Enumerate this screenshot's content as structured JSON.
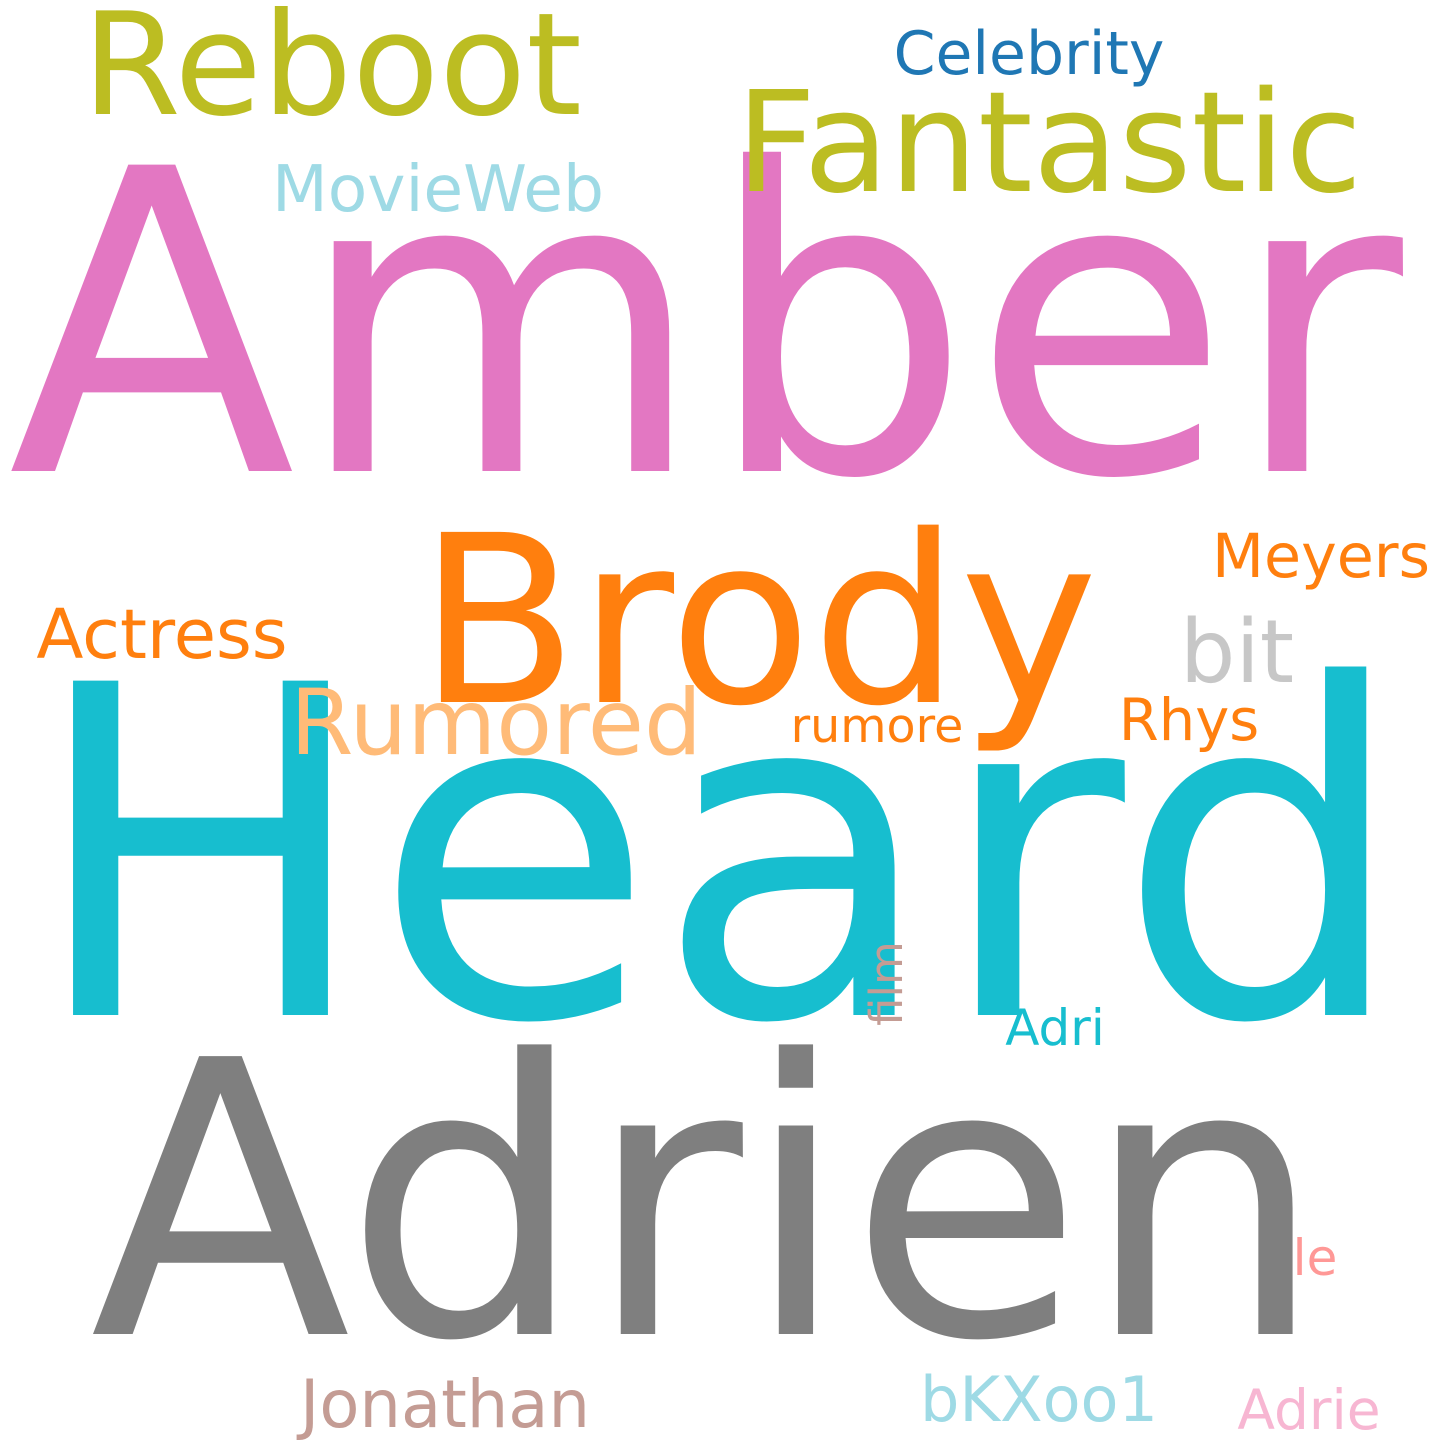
{
  "words": [
    {
      "text": "Amber",
      "color": "#e377c2"
    },
    {
      "text": "Heard",
      "color": "#17becf"
    },
    {
      "text": "Adrien",
      "color": "#7f7f7f"
    },
    {
      "text": "Brody",
      "color": "#ff7f0e"
    },
    {
      "text": "Fantastic",
      "color": "#bcbd22"
    },
    {
      "text": "Reboot",
      "color": "#bcbd22"
    },
    {
      "text": "Rumored",
      "color": "#ffbb78"
    },
    {
      "text": "MovieWeb",
      "color": "#9edae5"
    },
    {
      "text": "Celebrity",
      "color": "#1f77b4"
    },
    {
      "text": "Meyers",
      "color": "#ff7f0e"
    },
    {
      "text": "Actress",
      "color": "#ff7f0e"
    },
    {
      "text": "bit",
      "color": "#c7c7c7"
    },
    {
      "text": "Rhys",
      "color": "#ff7f0e"
    },
    {
      "text": "rumore",
      "color": "#ff7f0e"
    },
    {
      "text": "film",
      "color": "#c49c94"
    },
    {
      "text": "Adri",
      "color": "#17becf"
    },
    {
      "text": "le",
      "color": "#ff9896"
    },
    {
      "text": "Jonathan",
      "color": "#c49c94"
    },
    {
      "text": "bKXoo1",
      "color": "#9edae5"
    },
    {
      "text": "Adrie",
      "color": "#f7b6d2"
    }
  ]
}
